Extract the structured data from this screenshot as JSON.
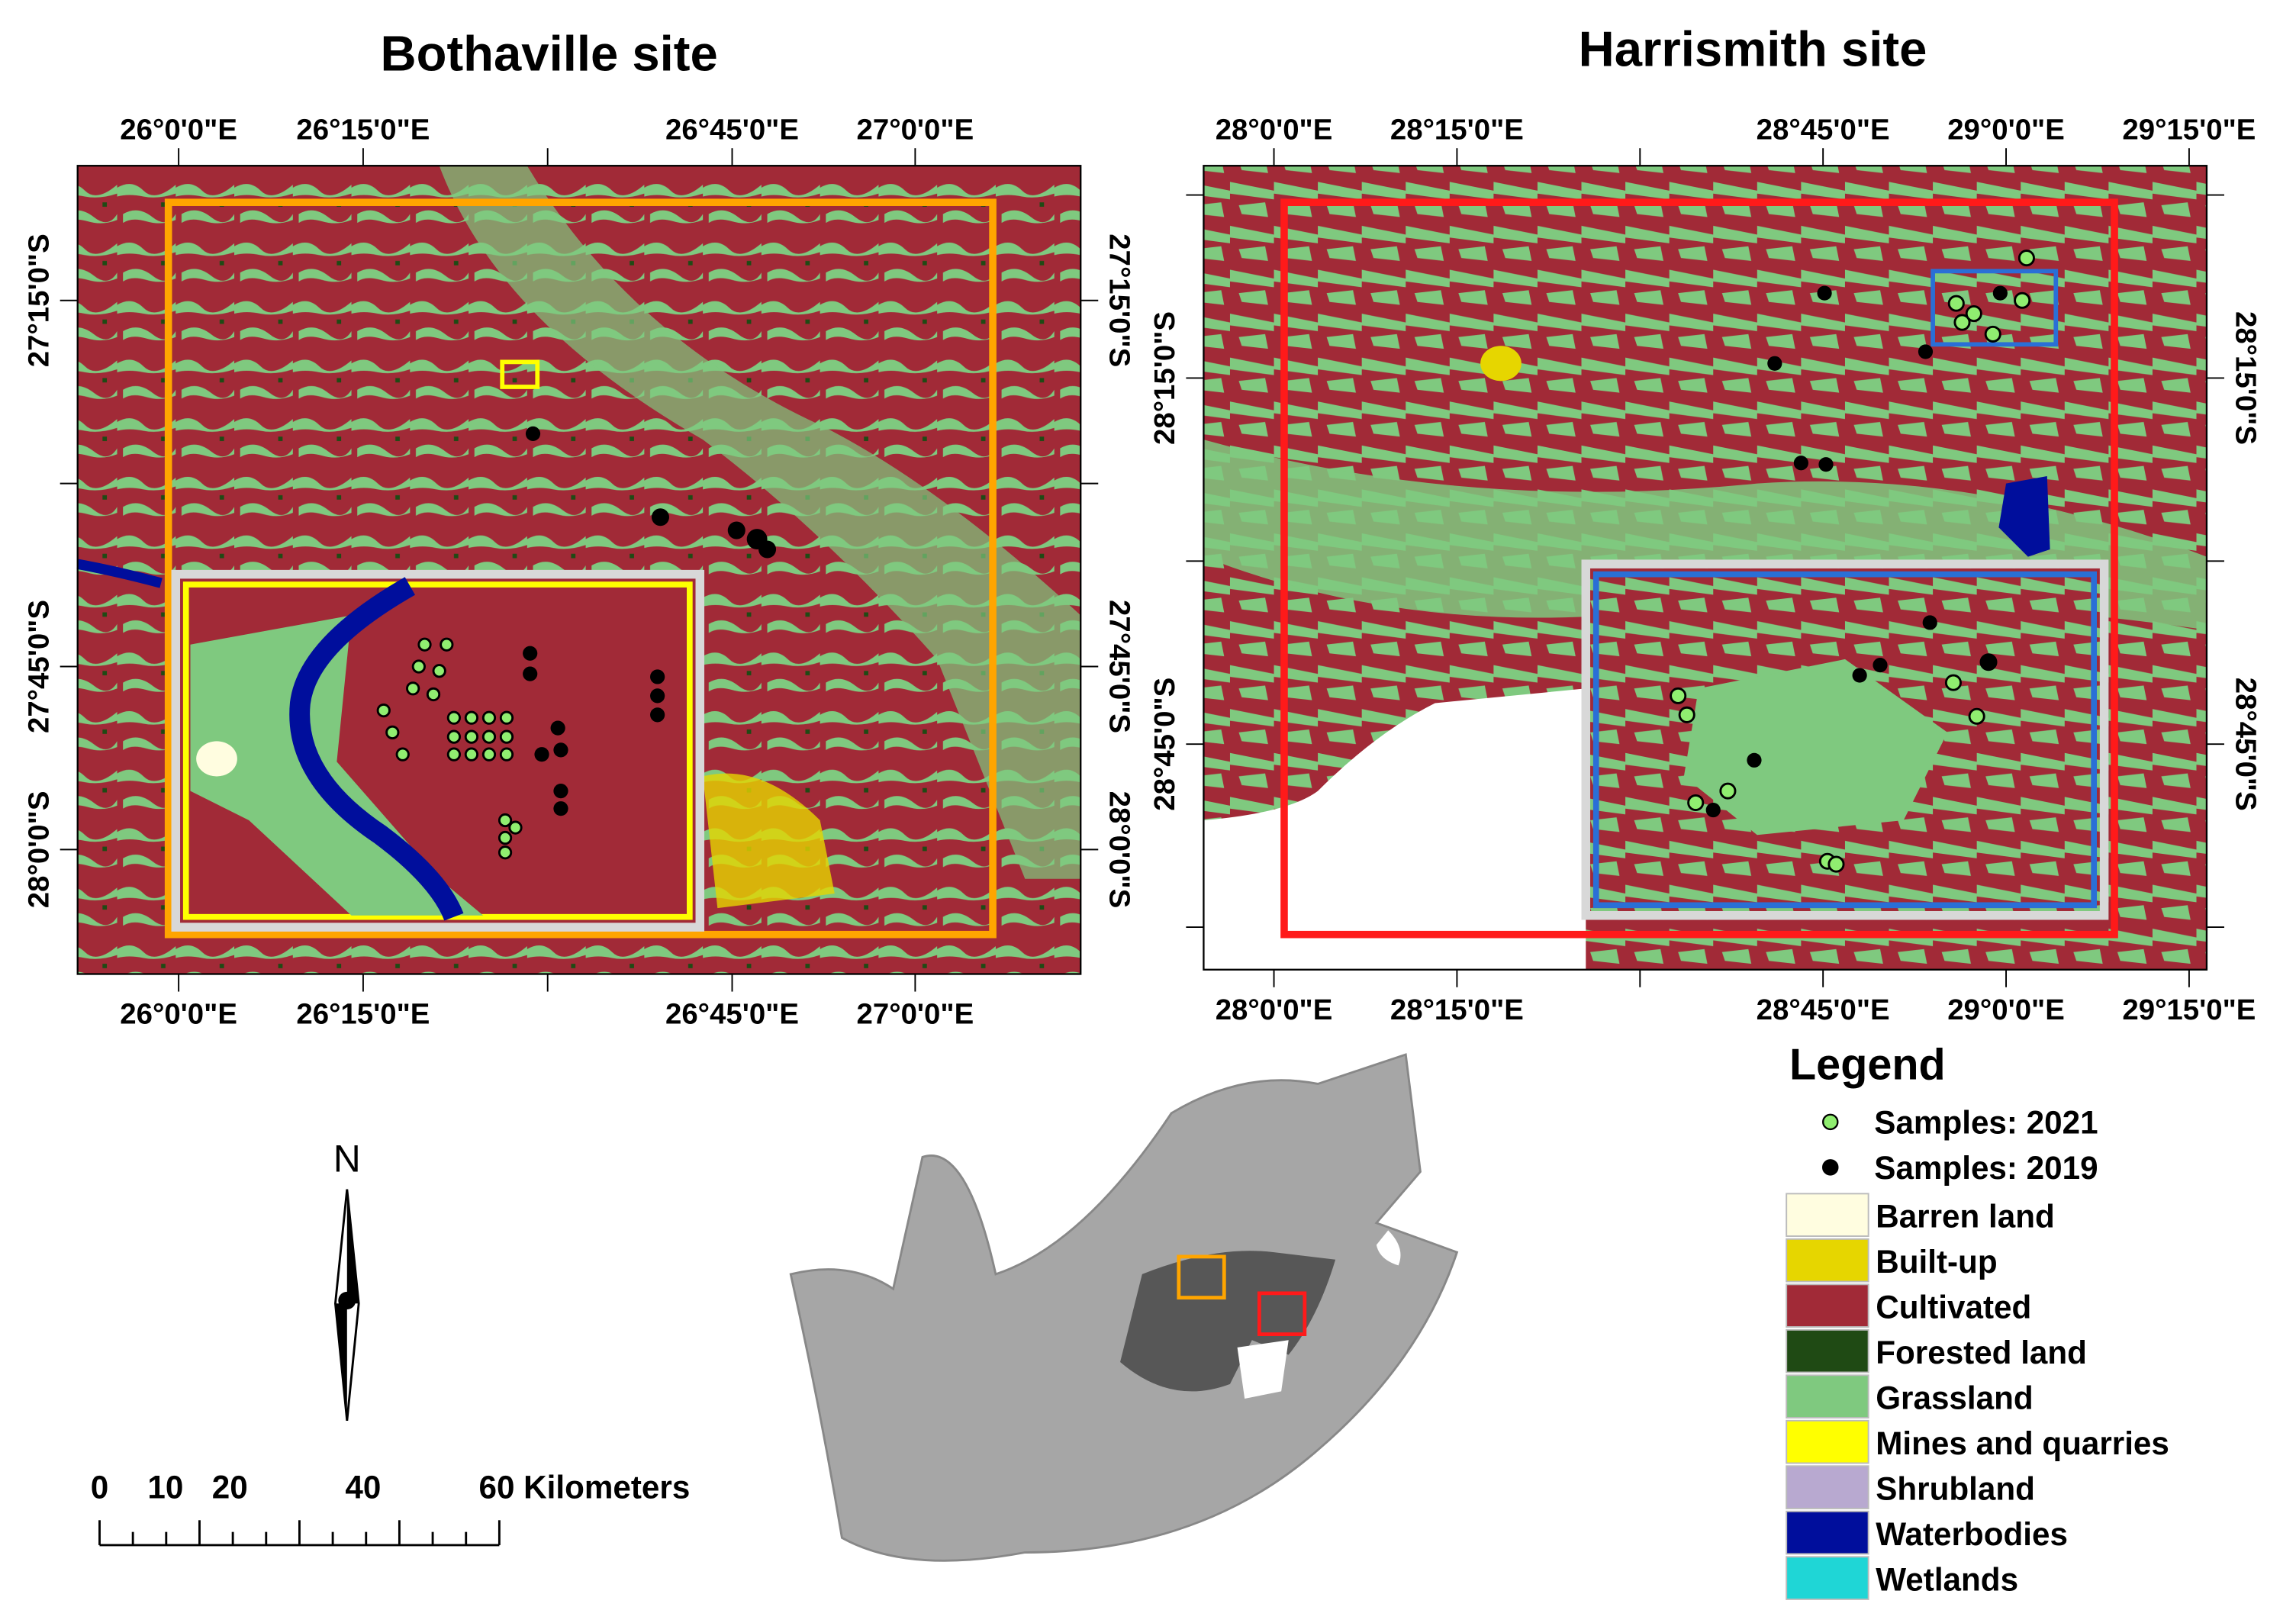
{
  "maps": [
    {
      "title": "Bothaville site",
      "lon_labels": [
        "26°0'0\"E",
        "26°15'0\"E",
        "26°45'0\"E",
        "27°0'0\"E"
      ],
      "lat_labels": [
        "27°15'0\"S",
        "27°45'0\"S",
        "28°0'0\"S"
      ]
    },
    {
      "title": "Harrismith site",
      "lon_labels": [
        "28°0'0\"E",
        "28°15'0\"E",
        "28°45'0\"E",
        "29°0'0\"E",
        "29°15'0\"E"
      ],
      "lat_labels": [
        "28°15'0\"S",
        "28°45'0\"S"
      ]
    }
  ],
  "legend": {
    "title": "Legend",
    "samples": [
      {
        "label": "Samples: 2021",
        "color": "#90ee70"
      },
      {
        "label": "Samples: 2019",
        "color": "#000000"
      }
    ],
    "classes": [
      {
        "label": "Barren land",
        "color": "#fffde0"
      },
      {
        "label": "Built-up",
        "color": "#e6d600"
      },
      {
        "label": "Cultivated",
        "color": "#a12a37"
      },
      {
        "label": "Forested land",
        "color": "#1f4a14"
      },
      {
        "label": "Grassland",
        "color": "#7fc97f"
      },
      {
        "label": "Mines and quarries",
        "color": "#ffff00"
      },
      {
        "label": "Shrubland",
        "color": "#b8a9d0"
      },
      {
        "label": "Waterbodies",
        "color": "#000e9c"
      },
      {
        "label": "Wetlands",
        "color": "#1fd6d6"
      }
    ]
  },
  "scale_bar": {
    "labels": [
      "0",
      "10",
      "20",
      "40",
      "60 Kilometers"
    ]
  },
  "north_arrow": {
    "label": "N"
  }
}
